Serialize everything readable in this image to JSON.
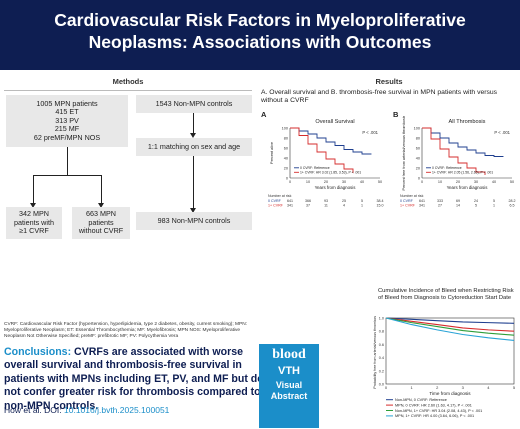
{
  "header": {
    "title_line1": "Cardiovascular Risk Factors in Myeloproliferative",
    "title_line2": "Neoplasms: Associations with Outcomes"
  },
  "methods": {
    "title": "Methods",
    "cohort_lines": [
      "1005 MPN patients",
      "415 ET",
      "313 PV",
      "215 MF",
      "62 preMF/MPN NOS"
    ],
    "controls": "1543 Non-MPN controls",
    "matching": "1:1 matching on sex and age",
    "with_cvrf_lines": [
      "342 MPN",
      "patients with",
      "≥1 CVRF"
    ],
    "without_cvrf_lines": [
      "663 MPN",
      "patients",
      "without CVRF"
    ],
    "matched_controls": "983 Non-MPN controls"
  },
  "results": {
    "title": "Results",
    "subtitle": "A. Overall survival and B. thrombosis-free survival in MPN patients with versus without a CVRF",
    "panel_a": {
      "label": "A",
      "title": "Overall Survival",
      "p": "P < .001",
      "ylabel": "Percent alive",
      "xlabel": "Years from diagnosis",
      "legend": [
        "0 CVRF: Reference",
        "1+ CVRF: HR 3.02 (1.85, 3.53), P < .001"
      ],
      "risk_header": "Number at risk",
      "risk_rows": [
        {
          "group": "0 CVRF",
          "values": [
            "641",
            "366",
            "93",
            "25",
            "5",
            "38.4"
          ]
        },
        {
          "group": "1+ CVRF",
          "values": [
            "341",
            "37",
            "11",
            "4",
            "1",
            "15.0"
          ]
        }
      ]
    },
    "panel_b": {
      "label": "B",
      "title": "All Thrombosis",
      "p": "P < .001",
      "ylabel": "Percent free from arterial/venous thrombosis",
      "xlabel": "Years from diagnosis",
      "legend": [
        "0 CVRF: Reference",
        "1+ CVRF: HR 2.05 (1.56, 2.65), P < .001"
      ],
      "risk_header": "Number at risk",
      "risk_rows": [
        {
          "group": "0 CVRF",
          "values": [
            "641",
            "333",
            "69",
            "24",
            "5",
            "28.2"
          ]
        },
        {
          "group": "1+ CVRF",
          "values": [
            "341",
            "27",
            "14",
            "5",
            "1",
            "6.5"
          ]
        }
      ]
    },
    "x_ticks": [
      "0",
      "10",
      "20",
      "30",
      "40",
      "50"
    ],
    "y_ticks": [
      "0",
      "20",
      "40",
      "60",
      "80",
      "100"
    ]
  },
  "bleed": {
    "title": "Cumulative Incidence of Bleed when Restricting Risk of Bleed from Diagnosis to Cytoreduction Start Date",
    "ylabel": "Probability free from arterial/venous thrombosis",
    "xlabel": "Time from diagnosis",
    "x_ticks": [
      "0",
      "1",
      "2",
      "3",
      "4",
      "5"
    ],
    "y_ticks": [
      "0.0",
      "0.2",
      "0.4",
      "0.6",
      "0.8",
      "1.0"
    ],
    "legend": [
      {
        "label": "Non-MPN, 0 CVRF: Reference",
        "color": "#1f3f8f"
      },
      {
        "label": "MPN, 0 CVRF: HR 2.60 (1.63, 4.17), P < .001",
        "color": "#d62c2c"
      },
      {
        "label": "Non-MPN, 1+ CVRF: HR 3.04 (2.08, 4.43), P < .001",
        "color": "#2e9e3a"
      },
      {
        "label": "MPN, 1+ CVRF: HR 4.00 (3.64, 6.06), P < .001",
        "color": "#29a3d6"
      }
    ]
  },
  "abbreviations": "CVRF: Cardiovascular Risk Factor (hypertension, hyperlipidemia, type 2 diabetes, obesity, current smoking); MPN: Myeloproliferative Neoplasm; ET: Essential Thrombocythemia; MF: Myelofibrosis; MPN NOS: Myeloproliferative Neoplasm Not Otherwise Specified; preMF: prefibrotic MF; PV: Polycythemia Vera",
  "conclusion": {
    "label": "Conclusions:",
    "text": " CVRFs are associated with worse overall survival and thrombosis-free survival in patients with MPNs including ET, PV, and MF but do not confer greater risk for thrombosis compared to non-MPN controls."
  },
  "citation": {
    "authors": "How et al. DOI: ",
    "doi": "10.1016/j.bvth.2025.100051"
  },
  "brand": {
    "logo": "blood",
    "vth": "VTH",
    "line1": "Visual",
    "line2": "Abstract"
  },
  "colors": {
    "header": "#0e1e52",
    "accent": "#1b8ec9",
    "series_reference": "#1f3f8f",
    "series_cvrf": "#d62c2c"
  },
  "chart_data": [
    {
      "type": "line",
      "title": "Overall Survival",
      "xlabel": "Years from diagnosis",
      "ylabel": "Percent alive",
      "xlim": [
        0,
        50
      ],
      "ylim": [
        0,
        100
      ],
      "series": [
        {
          "name": "0 CVRF: Reference",
          "color": "#1f3f8f",
          "x": [
            0,
            5,
            10,
            15,
            20,
            25,
            30,
            35,
            40,
            45
          ],
          "y": [
            100,
            94,
            88,
            80,
            72,
            65,
            57,
            52,
            48,
            47
          ]
        },
        {
          "name": "1+ CVRF: HR 3.02 (1.85, 3.53), P < .001",
          "color": "#d62c2c",
          "x": [
            0,
            5,
            10,
            15,
            20,
            25,
            30,
            35
          ],
          "y": [
            100,
            85,
            68,
            52,
            38,
            28,
            18,
            10
          ]
        }
      ]
    },
    {
      "type": "line",
      "title": "All Thrombosis",
      "xlabel": "Years from diagnosis",
      "ylabel": "Percent free from arterial/venous thrombosis",
      "xlim": [
        0,
        50
      ],
      "ylim": [
        0,
        100
      ],
      "series": [
        {
          "name": "0 CVRF: Reference",
          "color": "#1f3f8f",
          "x": [
            0,
            5,
            10,
            15,
            20,
            25,
            30,
            35,
            40,
            45
          ],
          "y": [
            100,
            90,
            80,
            70,
            62,
            56,
            50,
            45,
            43,
            42
          ]
        },
        {
          "name": "1+ CVRF: HR 2.05 (1.56, 2.65), P < .001",
          "color": "#d62c2c",
          "x": [
            0,
            5,
            10,
            15,
            20,
            25,
            30,
            35
          ],
          "y": [
            100,
            78,
            58,
            42,
            30,
            20,
            12,
            6
          ]
        }
      ]
    },
    {
      "type": "line",
      "title": "Cumulative Incidence of Bleed when Restricting Risk of Bleed from Diagnosis to Cytoreduction Start Date",
      "xlabel": "Time from diagnosis",
      "ylabel": "Probability free from arterial/venous thrombosis",
      "xlim": [
        0,
        5
      ],
      "ylim": [
        0,
        1
      ],
      "series": [
        {
          "name": "Non-MPN, 0 CVRF: Reference",
          "color": "#1f3f8f",
          "x": [
            0,
            1,
            2,
            3,
            4,
            5
          ],
          "y": [
            1.0,
            0.98,
            0.96,
            0.94,
            0.93,
            0.92
          ]
        },
        {
          "name": "MPN, 0 CVRF: HR 2.60 (1.63, 4.17), P < .001",
          "color": "#d62c2c",
          "x": [
            0,
            1,
            2,
            3,
            4,
            5
          ],
          "y": [
            1.0,
            0.95,
            0.9,
            0.85,
            0.82,
            0.8
          ]
        },
        {
          "name": "Non-MPN, 1+ CVRF: HR 3.04 (2.08, 4.43), P < .001",
          "color": "#2e9e3a",
          "x": [
            0,
            1,
            2,
            3,
            4,
            5
          ],
          "y": [
            1.0,
            0.93,
            0.87,
            0.81,
            0.77,
            0.74
          ]
        },
        {
          "name": "MPN, 1+ CVRF: HR 4.00 (3.64, 6.06), P < .001",
          "color": "#29a3d6",
          "x": [
            0,
            1,
            2,
            3,
            4,
            5
          ],
          "y": [
            1.0,
            0.9,
            0.82,
            0.75,
            0.7,
            0.66
          ]
        }
      ]
    }
  ]
}
